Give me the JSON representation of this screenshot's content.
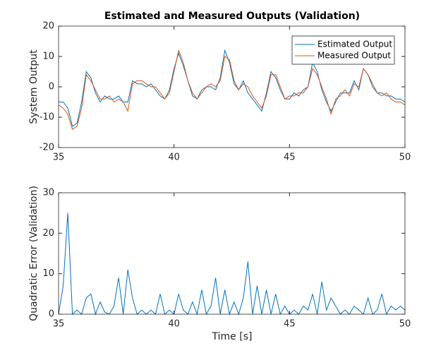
{
  "chart_data": [
    {
      "type": "line",
      "title": "Estimated and Measured Outputs (Validation)",
      "y_label": "System Output",
      "x": [
        35,
        35.2,
        35.4,
        35.6,
        35.8,
        36,
        36.2,
        36.4,
        36.6,
        36.8,
        37,
        37.2,
        37.4,
        37.6,
        37.8,
        38,
        38.2,
        38.4,
        38.6,
        38.8,
        39,
        39.2,
        39.4,
        39.6,
        39.8,
        40,
        40.2,
        40.4,
        40.6,
        40.8,
        41,
        41.2,
        41.4,
        41.6,
        41.8,
        42,
        42.2,
        42.4,
        42.6,
        42.8,
        43,
        43.2,
        43.4,
        43.6,
        43.8,
        44,
        44.2,
        44.4,
        44.6,
        44.8,
        45,
        45.2,
        45.4,
        45.6,
        45.8,
        46,
        46.2,
        46.4,
        46.6,
        46.8,
        47,
        47.2,
        47.4,
        47.6,
        47.8,
        48,
        48.2,
        48.4,
        48.6,
        48.8,
        49,
        49.2,
        49.4,
        49.6,
        49.8,
        50
      ],
      "series": [
        {
          "name": "Estimated Output",
          "color": "#0072bd",
          "values": [
            -5,
            -5,
            -7,
            -13,
            -12,
            -5,
            5,
            3,
            -2,
            -5,
            -3,
            -4,
            -4,
            -3,
            -5,
            -5,
            2,
            1,
            1,
            0,
            1,
            -1,
            -3,
            -4,
            -1,
            6,
            11,
            7,
            2,
            -3,
            -4,
            -1,
            0,
            0,
            -1,
            3,
            12,
            8,
            1,
            -1,
            2,
            -2,
            -4,
            -6,
            -8,
            -2,
            5,
            3,
            -1,
            -4,
            -4,
            -2,
            -3,
            -1,
            0,
            8,
            5,
            -1,
            -5,
            -8,
            -5,
            -2,
            -2,
            -2,
            2,
            -1,
            6,
            4,
            0,
            -2,
            -2,
            -3,
            -3,
            -4,
            -4,
            -5
          ]
        },
        {
          "name": "Measured Output",
          "color": "#d95319",
          "values": [
            -6,
            -7,
            -9,
            -14,
            -13,
            -7,
            4,
            2,
            -1,
            -4,
            -4,
            -3,
            -5,
            -4,
            -5,
            -8,
            1,
            2,
            2,
            1,
            0,
            0,
            -2,
            -4,
            -2,
            5,
            12,
            8,
            2,
            -2,
            -4,
            -2,
            0,
            1,
            0,
            2,
            10,
            9,
            2,
            -1,
            1,
            0,
            -3,
            -5,
            -7,
            -3,
            4,
            4,
            0,
            -4,
            -3,
            -3,
            -2,
            -2,
            0,
            6,
            4,
            0,
            -4,
            -9,
            -4,
            -3,
            -1,
            -3,
            1,
            0,
            6,
            4,
            1,
            -2,
            -3,
            -2,
            -4,
            -5,
            -5,
            -6
          ]
        }
      ],
      "xlim": [
        35,
        50
      ],
      "ylim": [
        -20,
        20
      ],
      "xticks": [
        35,
        40,
        45,
        50
      ],
      "yticks": [
        -20,
        -10,
        0,
        10,
        20
      ],
      "legend": "northeast"
    },
    {
      "type": "line",
      "x_label": "Time [s]",
      "y_label": "Quadratic Error (Validation)",
      "x": [
        35,
        35.2,
        35.4,
        35.6,
        35.8,
        36,
        36.2,
        36.4,
        36.6,
        36.8,
        37,
        37.2,
        37.4,
        37.6,
        37.8,
        38,
        38.2,
        38.4,
        38.6,
        38.8,
        39,
        39.2,
        39.4,
        39.6,
        39.8,
        40,
        40.2,
        40.4,
        40.6,
        40.8,
        41,
        41.2,
        41.4,
        41.6,
        41.8,
        42,
        42.2,
        42.4,
        42.6,
        42.8,
        43,
        43.2,
        43.4,
        43.6,
        43.8,
        44,
        44.2,
        44.4,
        44.6,
        44.8,
        45,
        45.2,
        45.4,
        45.6,
        45.8,
        46,
        46.2,
        46.4,
        46.6,
        46.8,
        47,
        47.2,
        47.4,
        47.6,
        47.8,
        48,
        48.2,
        48.4,
        48.6,
        48.8,
        49,
        49.2,
        49.4,
        49.6,
        49.8,
        50
      ],
      "series": [
        {
          "color": "#0072bd",
          "values": [
            0,
            7,
            25,
            0,
            1,
            0,
            4,
            5,
            0,
            3,
            0.5,
            0,
            2,
            9,
            0,
            11,
            4,
            0,
            1,
            0,
            1,
            0,
            5,
            0,
            1,
            0,
            5,
            1,
            0,
            3,
            0,
            6,
            0,
            2,
            9,
            0,
            6,
            0,
            3,
            0,
            4,
            13,
            0,
            7,
            0,
            6,
            0,
            5,
            0,
            2,
            0,
            1,
            0,
            2,
            1,
            5,
            0,
            8,
            1,
            4,
            2,
            0,
            1,
            0,
            2,
            1,
            0,
            4,
            0,
            1,
            5,
            0,
            2,
            1,
            2,
            1
          ]
        }
      ],
      "xlim": [
        35,
        50
      ],
      "ylim": [
        0,
        30
      ],
      "xticks": [
        35,
        40,
        45,
        50
      ],
      "yticks": [
        0,
        10,
        20,
        30
      ]
    }
  ]
}
